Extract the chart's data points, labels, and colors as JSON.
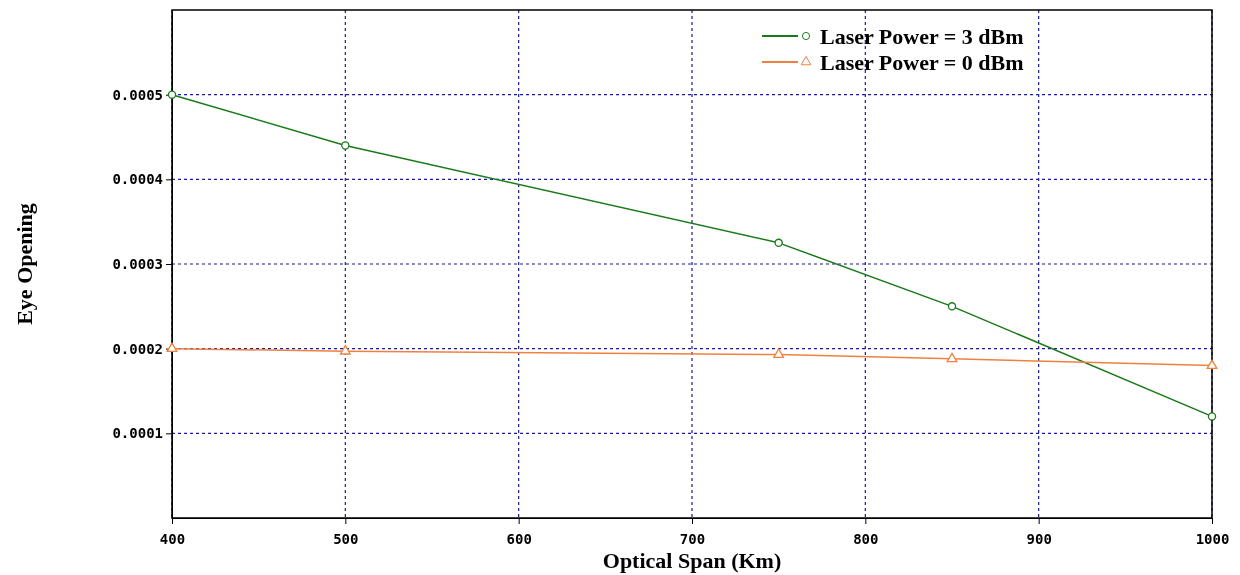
{
  "chart_data": {
    "type": "line",
    "xlabel": "Optical Span (Km)",
    "ylabel": "Eye Opening",
    "x": [
      400,
      500,
      750,
      850,
      1000
    ],
    "series": [
      {
        "name": "Laser Power = 3 dBm",
        "color": "#1a7a1a",
        "marker": "circle",
        "values": [
          0.0005,
          0.00044,
          0.000325,
          0.00025,
          0.00012
        ]
      },
      {
        "name": "Laser Power = 0 dBm",
        "color": "#f08040",
        "marker": "triangle",
        "values": [
          0.0002,
          0.000197,
          0.000193,
          0.000188,
          0.00018
        ]
      }
    ],
    "xlim": [
      400,
      1000
    ],
    "xticks": [
      400,
      500,
      600,
      700,
      800,
      900,
      1000
    ],
    "ylim": [
      0,
      0.0006
    ],
    "yticks": [
      {
        "value": 0.0001,
        "label": "0.0001"
      },
      {
        "value": 0.0002,
        "label": "0.0002"
      },
      {
        "value": 0.0003,
        "label": "0.0003"
      },
      {
        "value": 0.0004,
        "label": "0.0004"
      },
      {
        "value": 0.0005,
        "label": "0.0005"
      }
    ],
    "grid": true,
    "legend": "top right",
    "line_style": "solid"
  }
}
